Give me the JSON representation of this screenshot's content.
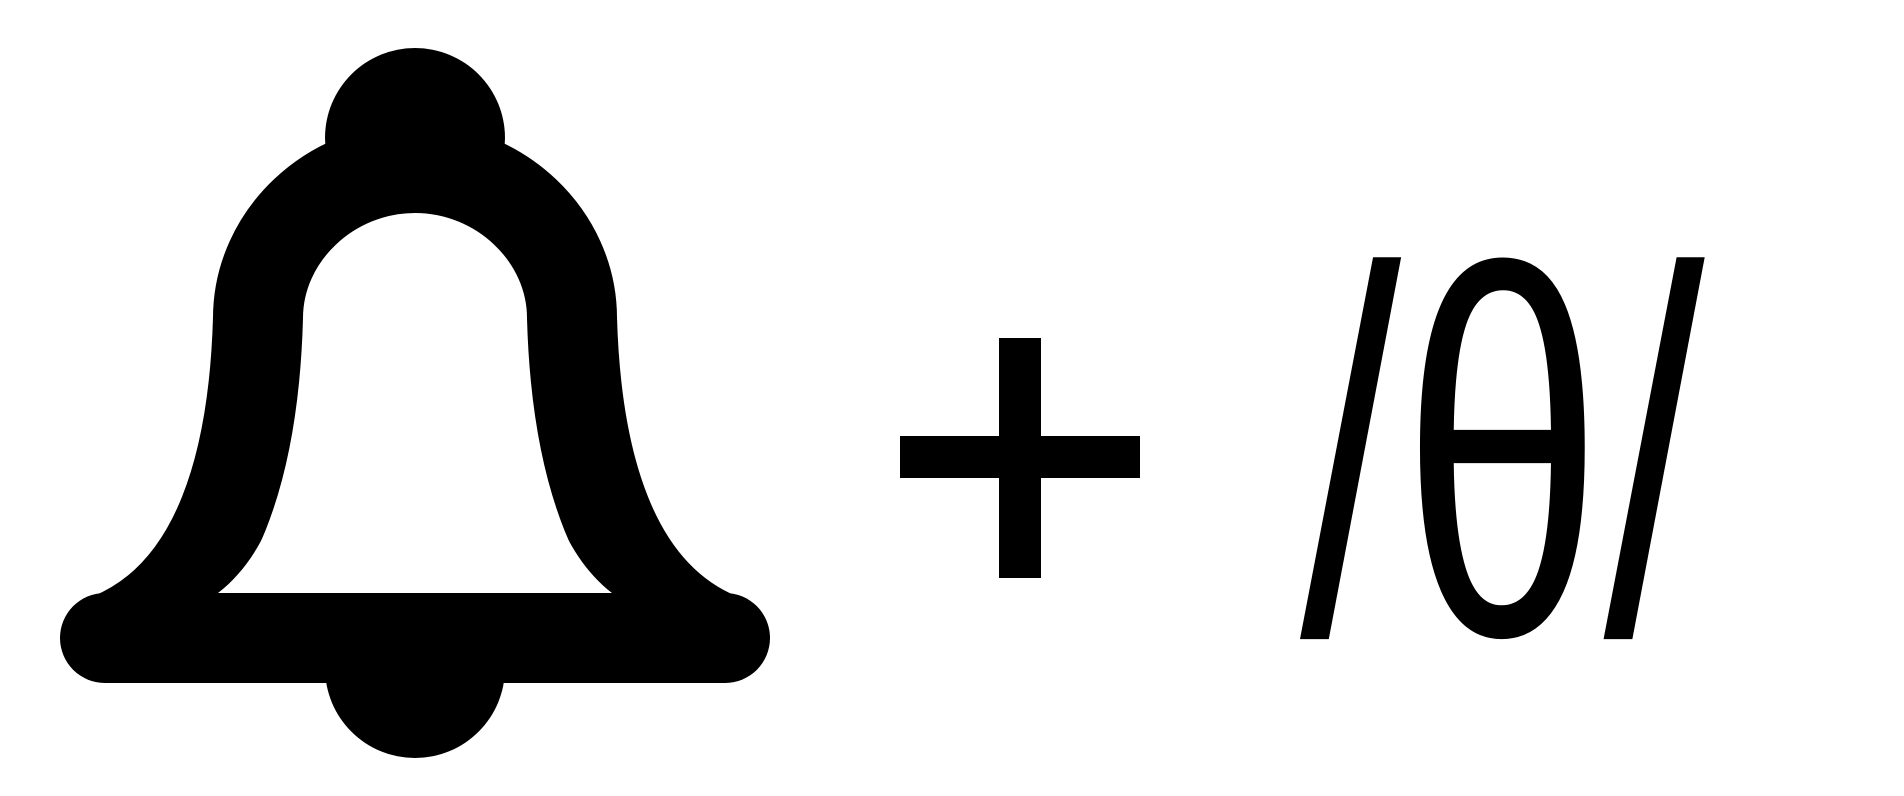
{
  "symbols": {
    "bell_icon": "bell-icon",
    "operator_icon": "plus-icon",
    "phoneme_text": "/θ/"
  },
  "colors": {
    "ink": "#000000",
    "background": "#ffffff"
  }
}
